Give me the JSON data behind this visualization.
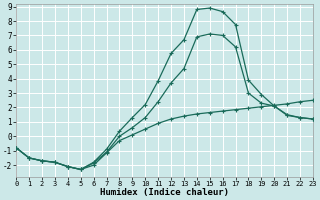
{
  "xlabel": "Humidex (Indice chaleur)",
  "background_color": "#cce8e8",
  "grid_color": "#ffffff",
  "line_color": "#1a6b5a",
  "xlim": [
    0,
    23
  ],
  "ylim": [
    -2.8,
    9.2
  ],
  "xticks": [
    0,
    1,
    2,
    3,
    4,
    5,
    6,
    7,
    8,
    9,
    10,
    11,
    12,
    13,
    14,
    15,
    16,
    17,
    18,
    19,
    20,
    21,
    22,
    23
  ],
  "yticks": [
    -2,
    -1,
    0,
    1,
    2,
    3,
    4,
    5,
    6,
    7,
    8,
    9
  ],
  "line1_x": [
    0,
    1,
    2,
    3,
    4,
    5,
    6,
    7,
    8,
    9,
    10,
    11,
    12,
    13,
    14,
    15,
    16,
    17,
    18,
    19,
    20,
    21,
    22,
    23
  ],
  "line1_y": [
    -0.8,
    -1.5,
    -1.7,
    -1.8,
    -2.1,
    -2.3,
    -2.0,
    -1.15,
    -0.3,
    0.1,
    0.5,
    0.9,
    1.2,
    1.4,
    1.55,
    1.65,
    1.75,
    1.85,
    1.95,
    2.05,
    2.15,
    2.25,
    2.4,
    2.5
  ],
  "line2_x": [
    0,
    1,
    2,
    3,
    4,
    5,
    6,
    7,
    8,
    9,
    10,
    11,
    12,
    13,
    14,
    15,
    16,
    17,
    18,
    19,
    20,
    21,
    22,
    23
  ],
  "line2_y": [
    -0.8,
    -1.5,
    -1.7,
    -1.8,
    -2.1,
    -2.3,
    -1.8,
    -0.9,
    0.35,
    1.3,
    2.2,
    3.85,
    5.75,
    6.7,
    8.8,
    8.9,
    8.65,
    7.75,
    3.9,
    2.9,
    2.1,
    1.45,
    1.3,
    1.2
  ],
  "line3_x": [
    0,
    1,
    2,
    3,
    4,
    5,
    6,
    7,
    8,
    9,
    10,
    11,
    12,
    13,
    14,
    15,
    16,
    17,
    18,
    19,
    20,
    21,
    22,
    23
  ],
  "line3_y": [
    -0.8,
    -1.5,
    -1.7,
    -1.8,
    -2.1,
    -2.3,
    -1.85,
    -1.1,
    0.0,
    0.6,
    1.3,
    2.4,
    3.7,
    4.7,
    6.9,
    7.1,
    7.0,
    6.2,
    3.0,
    2.3,
    2.1,
    1.5,
    1.3,
    1.2
  ]
}
